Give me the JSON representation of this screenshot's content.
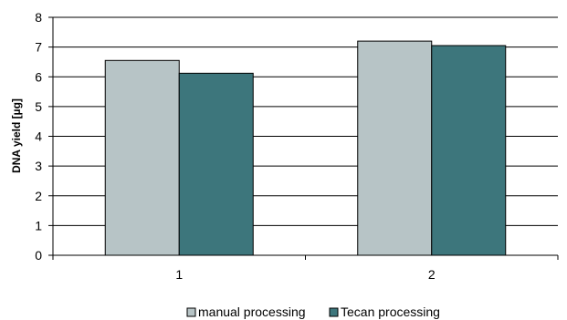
{
  "chart_data": {
    "type": "bar",
    "categories": [
      "1",
      "2"
    ],
    "series": [
      {
        "name": "manual processing",
        "values": [
          6.55,
          7.2
        ],
        "color": "#b7c4c6"
      },
      {
        "name": "Tecan processing",
        "values": [
          6.12,
          7.05
        ],
        "color": "#3d767c"
      }
    ],
    "xlabel": "",
    "ylabel": "DNA yield  [µg]",
    "ylim": [
      0,
      8
    ],
    "yticks": [
      0,
      1,
      2,
      3,
      4,
      5,
      6,
      7,
      8
    ],
    "grid": true,
    "legend_position": "bottom"
  }
}
